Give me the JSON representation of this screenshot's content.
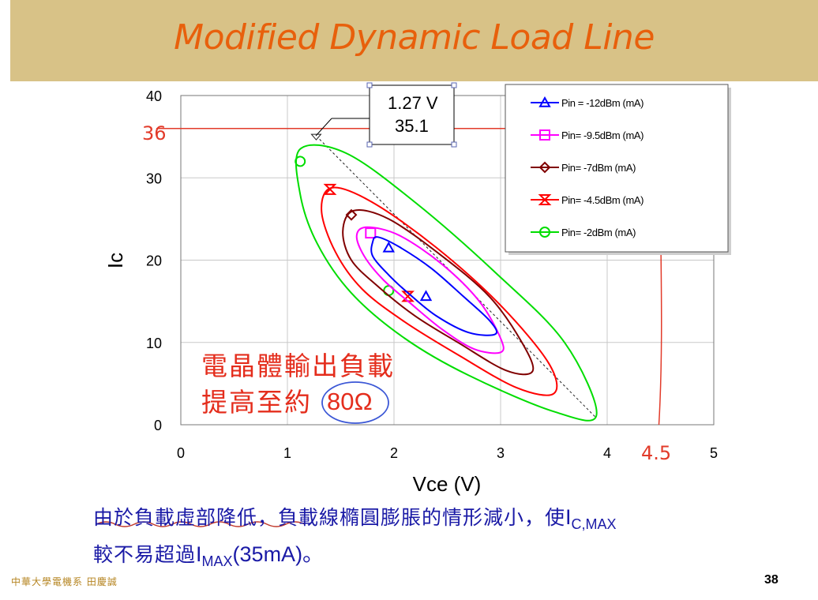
{
  "slide": {
    "title": "Modified Dynamic Load Line",
    "footer_left": "中華大學電機系 田慶誠",
    "page_number": "38"
  },
  "annotations": {
    "callout_line1": "1.27 V",
    "callout_line2": "35.1",
    "hand_36": "36",
    "hand_45": "4.5",
    "red_text_line1": "電晶體輸出負載",
    "red_text_line2": "提高至約",
    "red_text_value": "80Ω"
  },
  "note": {
    "line1_text": "由於負載虛部降低，負載線橢圓膨脹的情形減小，使",
    "line1_var": "I",
    "line1_sub": "C,MAX",
    "line2_text": "較不易超過",
    "line2_var": "I",
    "line2_sub": "MAX",
    "line2_tail": "(35mA)。"
  },
  "colors": {
    "title": "#e8600c",
    "title_bar": "#d8c287",
    "annotation_red": "#e42d1c",
    "note_blue": "#1a1aa6",
    "series_blue": "#0000ff",
    "series_magenta": "#ff00ff",
    "series_darkred": "#800000",
    "series_red": "#ff0000",
    "series_green": "#00dd00"
  },
  "chart_data": {
    "type": "line",
    "xlabel": "Vce (V)",
    "ylabel": "Ic",
    "xlim": [
      0,
      5
    ],
    "ylim": [
      0,
      40
    ],
    "xticks": [
      0,
      1,
      2,
      3,
      4,
      5
    ],
    "yticks": [
      0,
      10,
      20,
      30,
      40
    ],
    "grid": true,
    "legend_position": "top-right",
    "reference_line_y": 36,
    "reference_line_x": 4.5,
    "load_line": [
      [
        1.27,
        35.1
      ],
      [
        3.9,
        0.8
      ]
    ],
    "series": [
      {
        "name": "Pin = -12dBm (mA)",
        "color": "#0000ff",
        "marker": "triangle",
        "marker_point": [
          2.3,
          15.6
        ],
        "marker_point2": [
          1.95,
          21.5
        ],
        "points": [
          [
            1.85,
            22.8
          ],
          [
            2.05,
            21.6
          ],
          [
            2.35,
            19.0
          ],
          [
            2.65,
            15.6
          ],
          [
            2.9,
            12.6
          ],
          [
            2.95,
            11.0
          ],
          [
            2.7,
            11.2
          ],
          [
            2.4,
            13.2
          ],
          [
            2.15,
            15.8
          ],
          [
            1.95,
            18.2
          ],
          [
            1.8,
            20.5
          ],
          [
            1.8,
            22.2
          ]
        ]
      },
      {
        "name": "Pin= -9.5dBm (mA)",
        "color": "#ff00ff",
        "marker": "square",
        "marker_point": [
          1.78,
          23.3
        ],
        "points": [
          [
            1.75,
            24.0
          ],
          [
            2.05,
            23.0
          ],
          [
            2.45,
            19.5
          ],
          [
            2.8,
            15.0
          ],
          [
            3.0,
            10.5
          ],
          [
            3.0,
            8.8
          ],
          [
            2.75,
            9.2
          ],
          [
            2.45,
            11.6
          ],
          [
            2.15,
            14.8
          ],
          [
            1.9,
            17.6
          ],
          [
            1.72,
            20.5
          ],
          [
            1.65,
            23.0
          ]
        ]
      },
      {
        "name": "Pin= -7dBm (mA)",
        "color": "#800000",
        "marker": "diamond",
        "marker_point": [
          1.6,
          25.5
        ],
        "points": [
          [
            1.62,
            26.0
          ],
          [
            1.95,
            25.0
          ],
          [
            2.45,
            20.5
          ],
          [
            2.9,
            15.5
          ],
          [
            3.2,
            10.0
          ],
          [
            3.3,
            6.5
          ],
          [
            3.05,
            6.6
          ],
          [
            2.6,
            10.0
          ],
          [
            2.2,
            13.2
          ],
          [
            1.85,
            16.8
          ],
          [
            1.6,
            20.0
          ],
          [
            1.52,
            23.5
          ]
        ]
      },
      {
        "name": "Pin= -4.5dBm (mA)",
        "color": "#ff0000",
        "marker": "hourglass",
        "marker_point": [
          1.4,
          28.6
        ],
        "marker_point2": [
          2.13,
          15.6
        ],
        "points": [
          [
            1.42,
            28.8
          ],
          [
            1.8,
            27.0
          ],
          [
            2.4,
            21.5
          ],
          [
            3.0,
            14.5
          ],
          [
            3.45,
            7.5
          ],
          [
            3.5,
            3.8
          ],
          [
            3.15,
            4.5
          ],
          [
            2.6,
            8.5
          ],
          [
            2.1,
            12.5
          ],
          [
            1.7,
            16.5
          ],
          [
            1.45,
            21.0
          ],
          [
            1.32,
            26.0
          ]
        ]
      },
      {
        "name": "Pin= -2dBm (mA)",
        "color": "#00dd00",
        "marker": "circle",
        "marker_point": [
          1.12,
          32.0
        ],
        "marker_point2": [
          1.95,
          16.3
        ],
        "points": [
          [
            1.12,
            33.5
          ],
          [
            1.55,
            33.0
          ],
          [
            2.2,
            27.0
          ],
          [
            2.95,
            18.5
          ],
          [
            3.6,
            10.0
          ],
          [
            3.9,
            1.2
          ],
          [
            3.5,
            1.6
          ],
          [
            2.7,
            6.0
          ],
          [
            2.1,
            10.5
          ],
          [
            1.6,
            16.0
          ],
          [
            1.28,
            22.0
          ],
          [
            1.12,
            28.0
          ]
        ]
      }
    ]
  }
}
